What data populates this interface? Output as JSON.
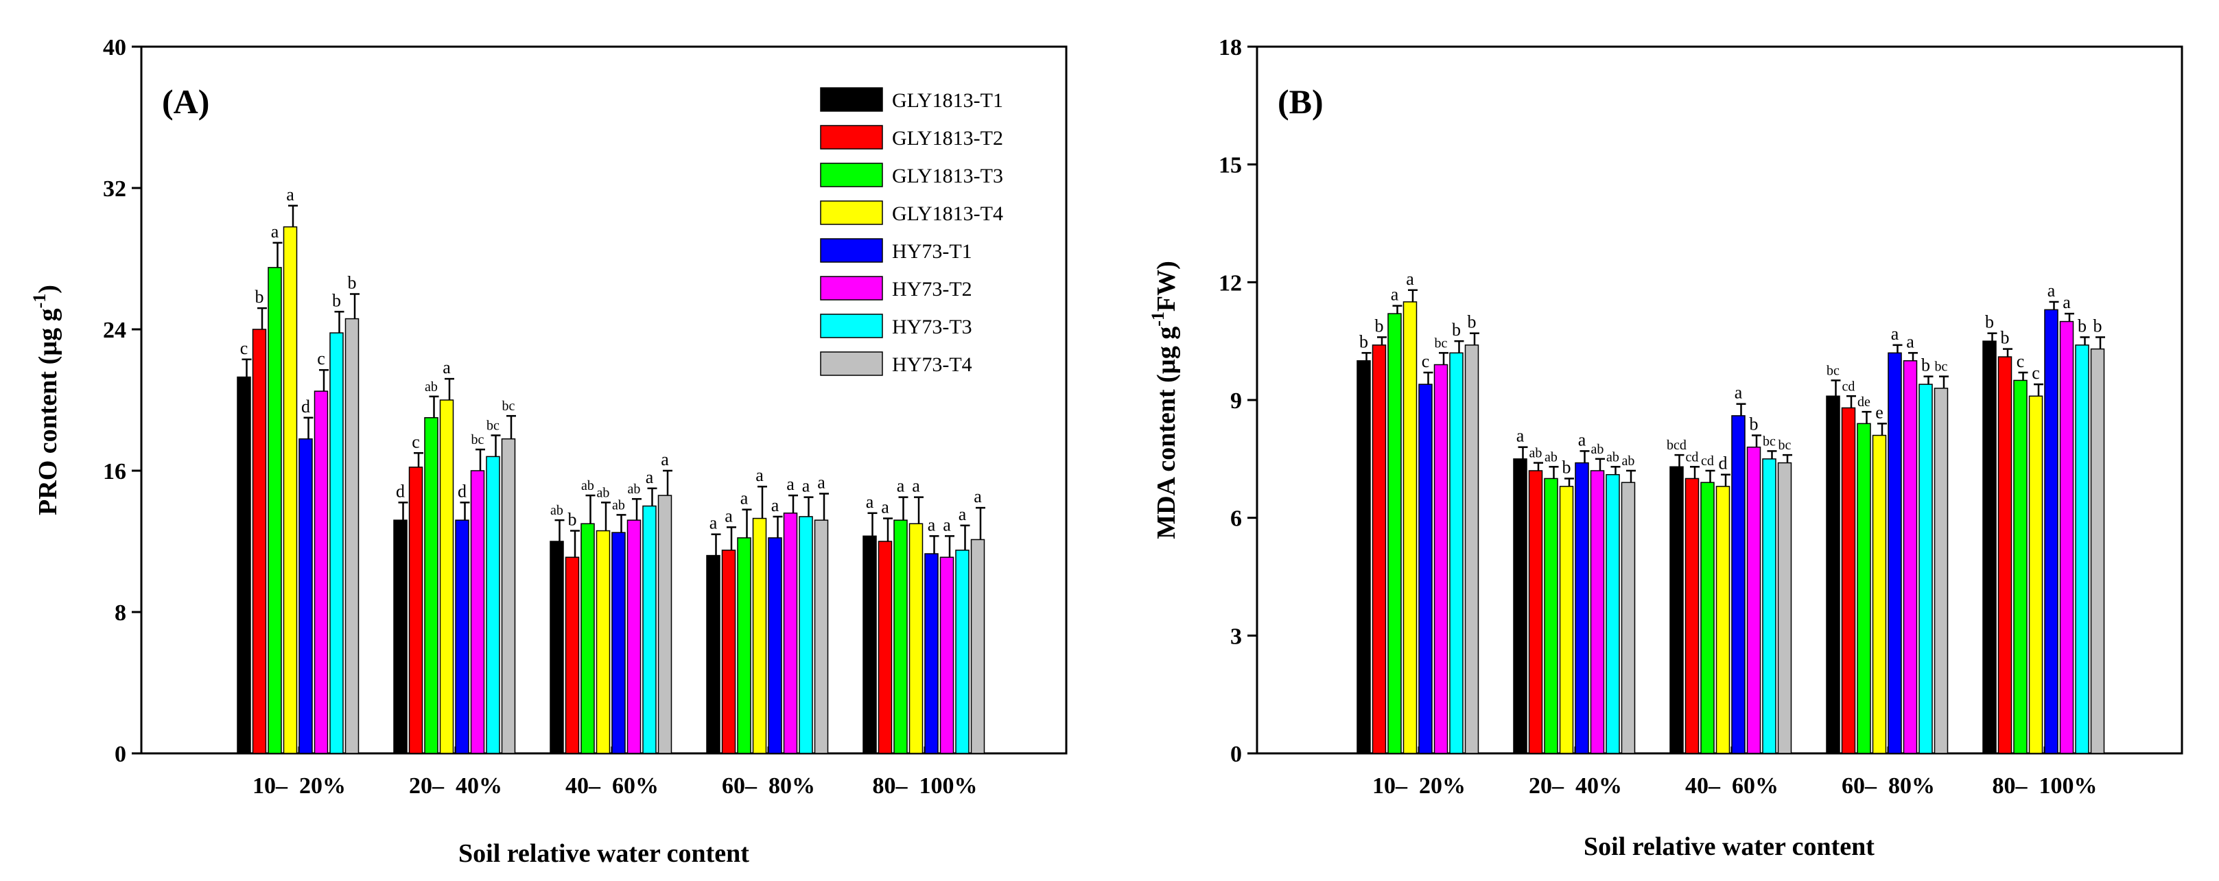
{
  "chart_data": [
    {
      "type": "bar",
      "panel_label": "(A)",
      "xlabel": "Soil relative water content",
      "ylabel": "PRO content (µg g",
      "ylabel_sup": "-1",
      "ylabel_end": ")",
      "ylim": [
        0,
        40
      ],
      "yticks": [
        "0",
        "8",
        "16",
        "24",
        "32",
        "40"
      ],
      "ytick_values": [
        0,
        8,
        16,
        24,
        32,
        40
      ],
      "categories": [
        "10–  20%",
        "20–  40%",
        "40–  60%",
        "60–  80%",
        "80–  100%"
      ],
      "legend_position": "top-right",
      "series": [
        {
          "name": "GLY1813-T1",
          "color": "#000000",
          "values": [
            21.3,
            13.2,
            12.0,
            11.2,
            12.3
          ],
          "errors": [
            1.0,
            1.0,
            1.2,
            1.2,
            1.3
          ],
          "labels": [
            "c",
            "d",
            "ab",
            "a",
            "a"
          ]
        },
        {
          "name": "GLY1813-T2",
          "color": "#ff0000",
          "values": [
            24.0,
            16.2,
            11.1,
            11.5,
            12.0
          ],
          "errors": [
            1.2,
            0.8,
            1.5,
            1.3,
            1.3
          ],
          "labels": [
            "b",
            "c",
            "b",
            "a",
            "a"
          ]
        },
        {
          "name": "GLY1813-T3",
          "color": "#00ff00",
          "values": [
            27.5,
            19.0,
            13.0,
            12.2,
            13.2
          ],
          "errors": [
            1.4,
            1.2,
            1.6,
            1.6,
            1.3
          ],
          "labels": [
            "a",
            "ab",
            "ab",
            "a",
            "a"
          ]
        },
        {
          "name": "GLY1813-T4",
          "color": "#ffff00",
          "values": [
            29.8,
            20.0,
            12.6,
            13.3,
            13.0
          ],
          "errors": [
            1.2,
            1.2,
            1.6,
            1.8,
            1.5
          ],
          "labels": [
            "a",
            "a",
            "ab",
            "a",
            "a"
          ]
        },
        {
          "name": "HY73-T1",
          "color": "#0000ff",
          "values": [
            17.8,
            13.2,
            12.5,
            12.2,
            11.3
          ],
          "errors": [
            1.2,
            1.0,
            1.0,
            1.2,
            1.0
          ],
          "labels": [
            "d",
            "d",
            "ab",
            "a",
            "a"
          ]
        },
        {
          "name": "HY73-T2",
          "color": "#ff00ff",
          "values": [
            20.5,
            16.0,
            13.2,
            13.6,
            11.1
          ],
          "errors": [
            1.2,
            1.2,
            1.2,
            1.0,
            1.2
          ],
          "labels": [
            "c",
            "bc",
            "ab",
            "a",
            "a"
          ]
        },
        {
          "name": "HY73-T3",
          "color": "#00ffff",
          "values": [
            23.8,
            16.8,
            14.0,
            13.4,
            11.5
          ],
          "errors": [
            1.2,
            1.2,
            1.0,
            1.1,
            1.4
          ],
          "labels": [
            "b",
            "bc",
            "a",
            "a",
            "a"
          ]
        },
        {
          "name": "HY73-T4",
          "color": "#c0c0c0",
          "values": [
            24.6,
            17.8,
            14.6,
            13.2,
            12.1
          ],
          "errors": [
            1.4,
            1.3,
            1.4,
            1.5,
            1.8
          ],
          "labels": [
            "b",
            "bc",
            "a",
            "a",
            "a"
          ]
        }
      ]
    },
    {
      "type": "bar",
      "panel_label": "(B)",
      "xlabel": "Soil relative water content",
      "ylabel": "MDA content (µg g",
      "ylabel_sup": "-1",
      "ylabel_end": "FW)",
      "ylim": [
        0,
        18
      ],
      "yticks": [
        "0",
        "3",
        "6",
        "9",
        "12",
        "15",
        "18"
      ],
      "ytick_values": [
        0,
        3,
        6,
        9,
        12,
        15,
        18
      ],
      "categories": [
        "10–  20%",
        "20–  40%",
        "40–  60%",
        "60–  80%",
        "80–  100%"
      ],
      "series": [
        {
          "name": "GLY1813-T1",
          "color": "#000000",
          "values": [
            10.0,
            7.5,
            7.3,
            9.1,
            10.5
          ],
          "errors": [
            0.2,
            0.3,
            0.3,
            0.4,
            0.2
          ],
          "labels": [
            "b",
            "a",
            "bcd",
            "bc",
            "b"
          ]
        },
        {
          "name": "GLY1813-T2",
          "color": "#ff0000",
          "values": [
            10.4,
            7.2,
            7.0,
            8.8,
            10.1
          ],
          "errors": [
            0.2,
            0.2,
            0.3,
            0.3,
            0.2
          ],
          "labels": [
            "b",
            "ab",
            "cd",
            "cd",
            "b"
          ]
        },
        {
          "name": "GLY1813-T3",
          "color": "#00ff00",
          "values": [
            11.2,
            7.0,
            6.9,
            8.4,
            9.5
          ],
          "errors": [
            0.2,
            0.3,
            0.3,
            0.3,
            0.2
          ],
          "labels": [
            "a",
            "ab",
            "cd",
            "de",
            "c"
          ]
        },
        {
          "name": "GLY1813-T4",
          "color": "#ffff00",
          "values": [
            11.5,
            6.8,
            6.8,
            8.1,
            9.1
          ],
          "errors": [
            0.3,
            0.2,
            0.3,
            0.3,
            0.3
          ],
          "labels": [
            "a",
            "b",
            "d",
            "e",
            "c"
          ]
        },
        {
          "name": "HY73-T1",
          "color": "#0000ff",
          "values": [
            9.4,
            7.4,
            8.6,
            10.2,
            11.3
          ],
          "errors": [
            0.3,
            0.3,
            0.3,
            0.2,
            0.2
          ],
          "labels": [
            "c",
            "a",
            "a",
            "a",
            "a"
          ]
        },
        {
          "name": "HY73-T2",
          "color": "#ff00ff",
          "values": [
            9.9,
            7.2,
            7.8,
            10.0,
            11.0
          ],
          "errors": [
            0.3,
            0.3,
            0.3,
            0.2,
            0.2
          ],
          "labels": [
            "bc",
            "ab",
            "b",
            "a",
            "a"
          ]
        },
        {
          "name": "HY73-T3",
          "color": "#00ffff",
          "values": [
            10.2,
            7.1,
            7.5,
            9.4,
            10.4
          ],
          "errors": [
            0.3,
            0.2,
            0.2,
            0.2,
            0.2
          ],
          "labels": [
            "b",
            "ab",
            "bc",
            "b",
            "b"
          ]
        },
        {
          "name": "HY73-T4",
          "color": "#c0c0c0",
          "values": [
            10.4,
            6.9,
            7.4,
            9.3,
            10.3
          ],
          "errors": [
            0.3,
            0.3,
            0.2,
            0.3,
            0.3
          ],
          "labels": [
            "b",
            "ab",
            "bc",
            "bc",
            "b"
          ]
        }
      ]
    }
  ]
}
